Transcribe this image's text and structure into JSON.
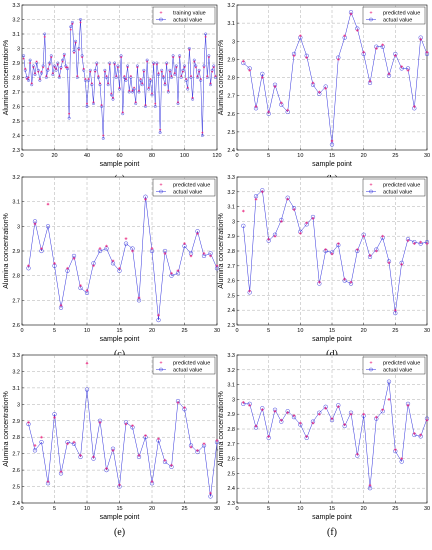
{
  "figure": {
    "x_label": "sample point",
    "y_label": "Alumina concentration%"
  },
  "chart_data": [
    {
      "id": "a",
      "type": "line",
      "caption": "(a)",
      "xlim": [
        0,
        120
      ],
      "ylim": [
        2.3,
        3.3
      ],
      "xticks": [
        0,
        20,
        40,
        60,
        80,
        100,
        120
      ],
      "yticks": [
        2.3,
        2.4,
        2.5,
        2.6,
        2.7,
        2.8,
        2.9,
        3.0,
        3.1,
        3.2,
        3.3
      ],
      "series_labels": [
        "training value",
        "actual value"
      ],
      "legend_position": "top-right",
      "colors": {
        "predicted": "#e8207a",
        "actual": "#3333dd"
      },
      "x": [
        1,
        2,
        3,
        4,
        5,
        6,
        7,
        8,
        9,
        10,
        11,
        12,
        13,
        14,
        15,
        16,
        17,
        18,
        19,
        20,
        21,
        22,
        23,
        24,
        25,
        26,
        27,
        28,
        29,
        30,
        31,
        32,
        33,
        34,
        35,
        36,
        37,
        38,
        39,
        40,
        41,
        42,
        43,
        44,
        45,
        46,
        47,
        48,
        49,
        50,
        51,
        52,
        53,
        54,
        55,
        56,
        57,
        58,
        59,
        60,
        61,
        62,
        63,
        64,
        65,
        66,
        67,
        68,
        69,
        70,
        71,
        72,
        73,
        74,
        75,
        76,
        77,
        78,
        79,
        80,
        81,
        82,
        83,
        84,
        85,
        86,
        87,
        88,
        89,
        90,
        91,
        92,
        93,
        94,
        95,
        96,
        97,
        98,
        99,
        100,
        101,
        102,
        103,
        104,
        105,
        106,
        107,
        108,
        109,
        110,
        111,
        112,
        113,
        114,
        115,
        116,
        117,
        118,
        119
      ],
      "actual": [
        2.95,
        2.85,
        2.8,
        2.78,
        2.92,
        2.75,
        2.88,
        2.82,
        2.9,
        2.85,
        2.78,
        2.83,
        2.88,
        3.1,
        2.8,
        2.85,
        2.9,
        2.95,
        2.82,
        2.88,
        2.85,
        2.9,
        2.8,
        2.87,
        2.92,
        2.96,
        2.88,
        2.86,
        2.52,
        3.15,
        3.18,
        2.98,
        3.05,
        2.8,
        3.0,
        3.2,
        2.95,
        2.85,
        2.78,
        2.6,
        2.78,
        2.85,
        2.75,
        2.62,
        2.85,
        2.9,
        2.8,
        2.75,
        2.6,
        2.38,
        2.85,
        2.8,
        2.75,
        2.9,
        2.68,
        2.65,
        2.9,
        2.8,
        2.88,
        2.72,
        2.95,
        2.55,
        2.8,
        2.78,
        2.88,
        2.7,
        2.8,
        2.7,
        2.72,
        2.62,
        2.88,
        2.7,
        2.78,
        2.75,
        2.85,
        2.6,
        2.92,
        2.72,
        2.78,
        2.68,
        2.9,
        2.6,
        2.9,
        2.82,
        2.42,
        2.85,
        2.8,
        2.75,
        2.9,
        2.7,
        2.85,
        2.8,
        2.95,
        2.82,
        2.88,
        2.62,
        2.95,
        2.8,
        2.85,
        2.88,
        2.78,
        2.72,
        3.0,
        2.8,
        2.65,
        2.92,
        2.88,
        2.8,
        2.85,
        2.78,
        2.4,
        2.88,
        3.1,
        2.8,
        2.95,
        2.75,
        2.85,
        2.88,
        2.8
      ],
      "predicted": [
        2.93,
        2.86,
        2.79,
        2.8,
        2.9,
        2.76,
        2.87,
        2.83,
        2.91,
        2.84,
        2.79,
        2.84,
        2.87,
        3.08,
        2.81,
        2.86,
        2.89,
        2.94,
        2.83,
        2.87,
        2.86,
        2.89,
        2.81,
        2.86,
        2.91,
        2.95,
        2.87,
        2.87,
        2.55,
        3.13,
        3.17,
        2.97,
        3.04,
        2.81,
        2.99,
        3.18,
        2.94,
        2.86,
        2.79,
        2.62,
        2.79,
        2.84,
        2.76,
        2.63,
        2.84,
        2.89,
        2.81,
        2.76,
        2.61,
        2.4,
        2.84,
        2.81,
        2.76,
        2.89,
        2.69,
        2.66,
        2.89,
        2.81,
        2.87,
        2.73,
        2.94,
        2.56,
        2.81,
        2.79,
        2.87,
        2.71,
        2.81,
        2.71,
        2.73,
        2.63,
        2.87,
        2.71,
        2.79,
        2.76,
        2.84,
        2.61,
        2.91,
        2.73,
        2.79,
        2.69,
        2.89,
        2.62,
        2.89,
        2.83,
        2.44,
        2.84,
        2.81,
        2.76,
        2.89,
        2.71,
        2.84,
        2.81,
        2.94,
        2.83,
        2.87,
        2.63,
        2.94,
        2.81,
        2.84,
        2.87,
        2.79,
        2.73,
        2.99,
        2.81,
        2.66,
        2.91,
        2.87,
        2.81,
        2.84,
        2.79,
        2.42,
        2.87,
        3.08,
        2.81,
        2.94,
        2.76,
        2.84,
        2.87,
        2.81
      ]
    },
    {
      "id": "b",
      "type": "line",
      "caption": "(b)",
      "xlim": [
        0,
        30
      ],
      "ylim": [
        2.4,
        3.2
      ],
      "xticks": [
        0,
        5,
        10,
        15,
        20,
        25,
        30
      ],
      "yticks": [
        2.4,
        2.5,
        2.6,
        2.7,
        2.8,
        2.9,
        3.0,
        3.1,
        3.2
      ],
      "series_labels": [
        "predicted value",
        "actual value"
      ],
      "legend_position": "top-right",
      "colors": {
        "predicted": "#e8207a",
        "actual": "#3333dd"
      },
      "x": [
        1,
        2,
        3,
        4,
        5,
        6,
        7,
        8,
        9,
        10,
        11,
        12,
        13,
        14,
        15,
        16,
        17,
        18,
        19,
        20,
        21,
        22,
        23,
        24,
        25,
        26,
        27,
        28,
        29,
        30
      ],
      "actual": [
        2.88,
        2.85,
        2.63,
        2.82,
        2.6,
        2.76,
        2.65,
        2.61,
        2.93,
        3.02,
        2.92,
        2.76,
        2.71,
        2.75,
        2.43,
        2.91,
        3.02,
        3.16,
        3.07,
        2.93,
        2.77,
        2.97,
        2.97,
        2.81,
        2.93,
        2.85,
        2.85,
        2.63,
        3.02,
        2.93
      ],
      "predicted": [
        2.89,
        2.84,
        2.64,
        2.8,
        2.61,
        2.75,
        2.66,
        2.62,
        2.92,
        3.03,
        2.91,
        2.77,
        2.72,
        2.74,
        2.45,
        2.9,
        3.03,
        3.15,
        3.06,
        2.94,
        2.78,
        2.96,
        2.98,
        2.82,
        2.92,
        2.86,
        2.84,
        2.64,
        3.01,
        2.94
      ]
    },
    {
      "id": "c",
      "type": "line",
      "caption": "(c)",
      "xlim": [
        0,
        30
      ],
      "ylim": [
        2.6,
        3.2
      ],
      "xticks": [
        0,
        5,
        10,
        15,
        20,
        25,
        30
      ],
      "yticks": [
        2.6,
        2.7,
        2.8,
        2.9,
        3.0,
        3.1,
        3.2
      ],
      "series_labels": [
        "predicted value",
        "actual value"
      ],
      "legend_position": "top-right",
      "colors": {
        "predicted": "#e8207a",
        "actual": "#3333dd"
      },
      "x": [
        1,
        2,
        3,
        4,
        5,
        6,
        7,
        8,
        9,
        10,
        11,
        12,
        13,
        14,
        15,
        16,
        17,
        18,
        19,
        20,
        21,
        22,
        23,
        24,
        25,
        26,
        27,
        28,
        29,
        30
      ],
      "actual": [
        2.83,
        3.02,
        2.9,
        3.0,
        2.84,
        2.67,
        2.82,
        2.88,
        2.75,
        2.73,
        2.85,
        2.9,
        2.91,
        2.85,
        2.82,
        2.93,
        2.91,
        2.7,
        3.12,
        2.9,
        2.62,
        2.9,
        2.8,
        2.81,
        2.92,
        2.89,
        2.98,
        2.88,
        2.89,
        2.83
      ],
      "predicted": [
        2.84,
        3.01,
        2.91,
        3.09,
        2.85,
        2.68,
        2.83,
        2.87,
        2.76,
        2.74,
        2.84,
        2.91,
        2.92,
        2.86,
        2.83,
        2.95,
        2.9,
        2.71,
        3.11,
        2.91,
        2.64,
        2.89,
        2.81,
        2.82,
        2.93,
        2.88,
        2.97,
        2.89,
        2.88,
        2.84
      ]
    },
    {
      "id": "d",
      "type": "line",
      "caption": "(d)",
      "xlim": [
        0,
        30
      ],
      "ylim": [
        2.3,
        3.3
      ],
      "xticks": [
        0,
        5,
        10,
        15,
        20,
        25,
        30
      ],
      "yticks": [
        2.3,
        2.4,
        2.5,
        2.6,
        2.7,
        2.8,
        2.9,
        3.0,
        3.1,
        3.2,
        3.3
      ],
      "series_labels": [
        "predicted value",
        "actual value"
      ],
      "legend_position": "top-right",
      "colors": {
        "predicted": "#e8207a",
        "actual": "#3333dd"
      },
      "x": [
        1,
        2,
        3,
        4,
        5,
        6,
        7,
        8,
        9,
        10,
        11,
        12,
        13,
        14,
        15,
        16,
        17,
        18,
        19,
        20,
        21,
        22,
        23,
        24,
        25,
        26,
        27,
        28,
        29,
        30
      ],
      "actual": [
        2.97,
        2.52,
        3.17,
        3.21,
        2.87,
        2.91,
        3.01,
        3.16,
        3.09,
        2.93,
        2.98,
        3.03,
        2.58,
        2.8,
        2.79,
        2.84,
        2.6,
        2.58,
        2.8,
        2.91,
        2.76,
        2.81,
        2.89,
        2.73,
        2.38,
        2.72,
        2.88,
        2.86,
        2.85,
        2.86
      ],
      "predicted": [
        3.07,
        2.53,
        3.15,
        3.2,
        2.88,
        2.9,
        3.0,
        3.15,
        3.08,
        2.92,
        2.99,
        3.02,
        2.59,
        2.81,
        2.78,
        2.85,
        2.61,
        2.59,
        2.81,
        2.9,
        2.77,
        2.8,
        2.9,
        2.72,
        2.4,
        2.71,
        2.87,
        2.85,
        2.86,
        2.85
      ]
    },
    {
      "id": "e",
      "type": "line",
      "caption": "(e)",
      "xlim": [
        0,
        30
      ],
      "ylim": [
        2.4,
        3.3
      ],
      "xticks": [
        0,
        5,
        10,
        15,
        20,
        25,
        30
      ],
      "yticks": [
        2.4,
        2.5,
        2.6,
        2.7,
        2.8,
        2.9,
        3.0,
        3.1,
        3.2,
        3.3
      ],
      "series_labels": [
        "predicted value",
        "actual value"
      ],
      "legend_position": "top-right",
      "colors": {
        "predicted": "#e8207a",
        "actual": "#3333dd"
      },
      "x": [
        1,
        2,
        3,
        4,
        5,
        6,
        7,
        8,
        9,
        10,
        11,
        12,
        13,
        14,
        15,
        16,
        17,
        18,
        19,
        20,
        21,
        22,
        23,
        24,
        25,
        26,
        27,
        28,
        29,
        30
      ],
      "actual": [
        2.88,
        2.72,
        2.77,
        2.52,
        2.94,
        2.58,
        2.77,
        2.76,
        2.68,
        3.09,
        2.67,
        2.9,
        2.6,
        2.73,
        2.5,
        2.89,
        2.86,
        2.68,
        2.8,
        2.52,
        2.78,
        2.65,
        2.62,
        3.02,
        2.97,
        2.75,
        2.71,
        2.75,
        2.44,
        2.77
      ],
      "predicted": [
        2.89,
        2.75,
        2.8,
        2.53,
        2.92,
        2.59,
        2.76,
        2.77,
        2.69,
        3.25,
        2.68,
        2.89,
        2.61,
        2.72,
        2.51,
        2.88,
        2.87,
        2.69,
        2.81,
        2.53,
        2.79,
        2.66,
        2.63,
        3.01,
        2.98,
        2.74,
        2.72,
        2.76,
        2.46,
        2.78
      ]
    },
    {
      "id": "f",
      "type": "line",
      "caption": "(f)",
      "xlim": [
        0,
        30
      ],
      "ylim": [
        2.3,
        3.3
      ],
      "xticks": [
        0,
        5,
        10,
        15,
        20,
        25,
        30
      ],
      "yticks": [
        2.3,
        2.4,
        2.5,
        2.6,
        2.7,
        2.8,
        2.9,
        3.0,
        3.1,
        3.2,
        3.3
      ],
      "series_labels": [
        "predicted value",
        "actual value"
      ],
      "legend_position": "top-right",
      "colors": {
        "predicted": "#e8207a",
        "actual": "#3333dd"
      },
      "x": [
        1,
        2,
        3,
        4,
        5,
        6,
        7,
        8,
        9,
        10,
        11,
        12,
        13,
        14,
        15,
        16,
        17,
        18,
        19,
        20,
        21,
        22,
        23,
        24,
        25,
        26,
        27,
        28,
        29,
        30
      ],
      "actual": [
        2.97,
        2.97,
        2.81,
        2.94,
        2.74,
        2.93,
        2.85,
        2.92,
        2.88,
        2.83,
        2.74,
        2.85,
        2.91,
        2.95,
        2.86,
        2.96,
        2.82,
        2.91,
        2.62,
        2.89,
        2.4,
        2.87,
        2.92,
        3.12,
        2.65,
        2.58,
        2.97,
        2.76,
        2.75,
        2.87
      ],
      "predicted": [
        2.98,
        2.96,
        2.82,
        2.93,
        2.75,
        2.92,
        2.86,
        2.91,
        2.89,
        2.84,
        2.75,
        2.84,
        2.9,
        2.94,
        2.87,
        2.95,
        2.83,
        2.9,
        2.63,
        2.9,
        2.42,
        2.88,
        2.93,
        3.0,
        2.66,
        2.6,
        2.96,
        2.77,
        2.76,
        2.86
      ]
    }
  ]
}
